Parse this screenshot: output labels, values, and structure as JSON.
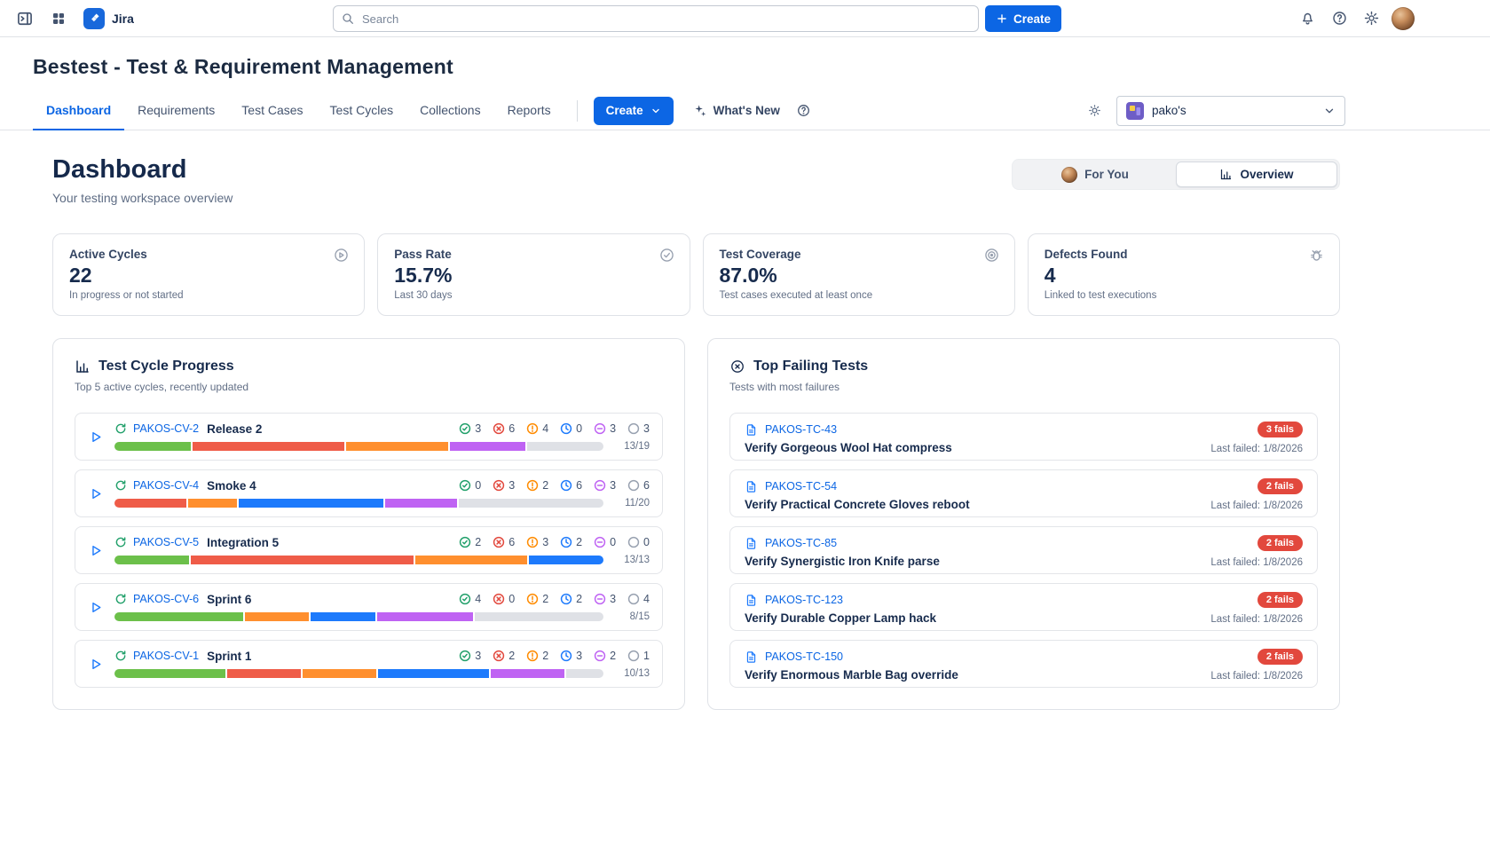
{
  "topbar": {
    "app_name": "Jira",
    "search_placeholder": "Search",
    "create_label": "Create"
  },
  "page": {
    "title": "Bestest - Test & Requirement Management",
    "tabs": [
      "Dashboard",
      "Requirements",
      "Test Cases",
      "Test Cycles",
      "Collections",
      "Reports"
    ],
    "active_tab": "Dashboard",
    "create_label": "Create",
    "whats_new_label": "What's New",
    "project_select": "pako's"
  },
  "dashboard": {
    "heading": "Dashboard",
    "subheading": "Your testing workspace overview",
    "view_toggle": {
      "for_you": "For You",
      "overview": "Overview",
      "active": "Overview"
    }
  },
  "stats": [
    {
      "label": "Active Cycles",
      "value": "22",
      "note": "In progress or not started",
      "icon": "play-circle"
    },
    {
      "label": "Pass Rate",
      "value": "15.7%",
      "note": "Last 30 days",
      "icon": "check-circle"
    },
    {
      "label": "Test Coverage",
      "value": "87.0%",
      "note": "Test cases executed at least once",
      "icon": "target"
    },
    {
      "label": "Defects Found",
      "value": "4",
      "note": "Linked to test executions",
      "icon": "bug"
    }
  ],
  "cycles": {
    "title": "Test Cycle Progress",
    "subtitle": "Top 5 active cycles, recently updated",
    "status_names": [
      "passed",
      "failed",
      "blocked",
      "in-progress",
      "skipped",
      "not-run"
    ],
    "status_icon_colors": [
      "#22a06b",
      "#e2483d",
      "#ff8b00",
      "#1d7afc",
      "#bf63f3",
      "#98a1b0"
    ],
    "status_bar_colors": [
      "#6cc04a",
      "#ef5c48",
      "#ff8f2e",
      "#1d7afc",
      "#bf63f3",
      "#dfe1e6"
    ],
    "rows": [
      {
        "key": "PAKOS-CV-2",
        "name": "Release 2",
        "counts": [
          3,
          6,
          4,
          0,
          3,
          3
        ],
        "fraction": "13/19"
      },
      {
        "key": "PAKOS-CV-4",
        "name": "Smoke 4",
        "counts": [
          0,
          3,
          2,
          6,
          3,
          6
        ],
        "fraction": "11/20"
      },
      {
        "key": "PAKOS-CV-5",
        "name": "Integration 5",
        "counts": [
          2,
          6,
          3,
          2,
          0,
          0
        ],
        "fraction": "13/13"
      },
      {
        "key": "PAKOS-CV-6",
        "name": "Sprint 6",
        "counts": [
          4,
          0,
          2,
          2,
          3,
          4
        ],
        "fraction": "8/15"
      },
      {
        "key": "PAKOS-CV-1",
        "name": "Sprint 1",
        "counts": [
          3,
          2,
          2,
          3,
          2,
          1
        ],
        "fraction": "10/13"
      }
    ]
  },
  "failing": {
    "title": "Top Failing Tests",
    "subtitle": "Tests with most failures",
    "badge_color": "#e2483d",
    "rows": [
      {
        "key": "PAKOS-TC-43",
        "fails": "3 fails",
        "title": "Verify Gorgeous Wool Hat compress",
        "last_failed": "Last failed: 1/8/2026"
      },
      {
        "key": "PAKOS-TC-54",
        "fails": "2 fails",
        "title": "Verify Practical Concrete Gloves reboot",
        "last_failed": "Last failed: 1/8/2026"
      },
      {
        "key": "PAKOS-TC-85",
        "fails": "2 fails",
        "title": "Verify Synergistic Iron Knife parse",
        "last_failed": "Last failed: 1/8/2026"
      },
      {
        "key": "PAKOS-TC-123",
        "fails": "2 fails",
        "title": "Verify Durable Copper Lamp hack",
        "last_failed": "Last failed: 1/8/2026"
      },
      {
        "key": "PAKOS-TC-150",
        "fails": "2 fails",
        "title": "Verify Enormous Marble Bag override",
        "last_failed": "Last failed: 1/8/2026"
      }
    ]
  },
  "colors": {
    "brand": "#0c66e4",
    "link": "#0c66e4",
    "heading": "#172b4d"
  }
}
